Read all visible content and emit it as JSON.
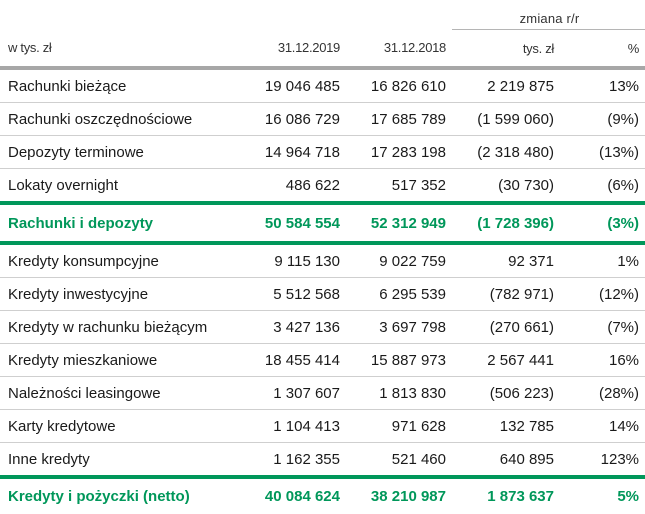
{
  "header": {
    "group_label": "zmiana r/r",
    "col_label": "w tys. zł",
    "col_2019": "31.12.2019",
    "col_2018": "31.12.2018",
    "col_change_abs": "tys. zł",
    "col_change_pct": "%"
  },
  "deposits": [
    {
      "label": "Rachunki bieżące",
      "v2019": "19 046 485",
      "v2018": "16 826 610",
      "change": "2 219 875",
      "pct": "13%"
    },
    {
      "label": "Rachunki oszczędnościowe",
      "v2019": "16 086 729",
      "v2018": "17 685 789",
      "change": "(1 599 060)",
      "pct": "(9%)"
    },
    {
      "label": "Depozyty terminowe",
      "v2019": "14 964 718",
      "v2018": "17 283 198",
      "change": "(2 318 480)",
      "pct": "(13%)"
    },
    {
      "label": "Lokaty overnight",
      "v2019": "486 622",
      "v2018": "517 352",
      "change": "(30 730)",
      "pct": "(6%)"
    }
  ],
  "deposits_total": {
    "label": "Rachunki i depozyty",
    "v2019": "50 584 554",
    "v2018": "52 312 949",
    "change": "(1 728 396)",
    "pct": "(3%)"
  },
  "loans": [
    {
      "label": "Kredyty konsumpcyjne",
      "v2019": "9 115 130",
      "v2018": "9 022 759",
      "change": "92 371",
      "pct": "1%"
    },
    {
      "label": "Kredyty inwestycyjne",
      "v2019": "5 512 568",
      "v2018": "6 295 539",
      "change": "(782 971)",
      "pct": "(12%)"
    },
    {
      "label": "Kredyty w rachunku bieżącym",
      "v2019": "3 427 136",
      "v2018": "3 697 798",
      "change": "(270 661)",
      "pct": "(7%)"
    },
    {
      "label": "Kredyty mieszkaniowe",
      "v2019": "18 455 414",
      "v2018": "15 887 973",
      "change": "2 567 441",
      "pct": "16%"
    },
    {
      "label": "Należności leasingowe",
      "v2019": "1 307 607",
      "v2018": "1 813 830",
      "change": "(506 223)",
      "pct": "(28%)"
    },
    {
      "label": "Karty kredytowe",
      "v2019": "1 104 413",
      "v2018": "971 628",
      "change": "132 785",
      "pct": "14%"
    },
    {
      "label": "Inne kredyty",
      "v2019": "1 162 355",
      "v2018": "521 460",
      "change": "640 895",
      "pct": "123%"
    }
  ],
  "loans_total": {
    "label": "Kredyty i pożyczki (netto)",
    "v2019": "40 084 624",
    "v2018": "38 210 987",
    "change": "1 873 637",
    "pct": "5%"
  },
  "colors": {
    "accent_green": "#00975a",
    "header_rule": "#a7a7a7"
  }
}
